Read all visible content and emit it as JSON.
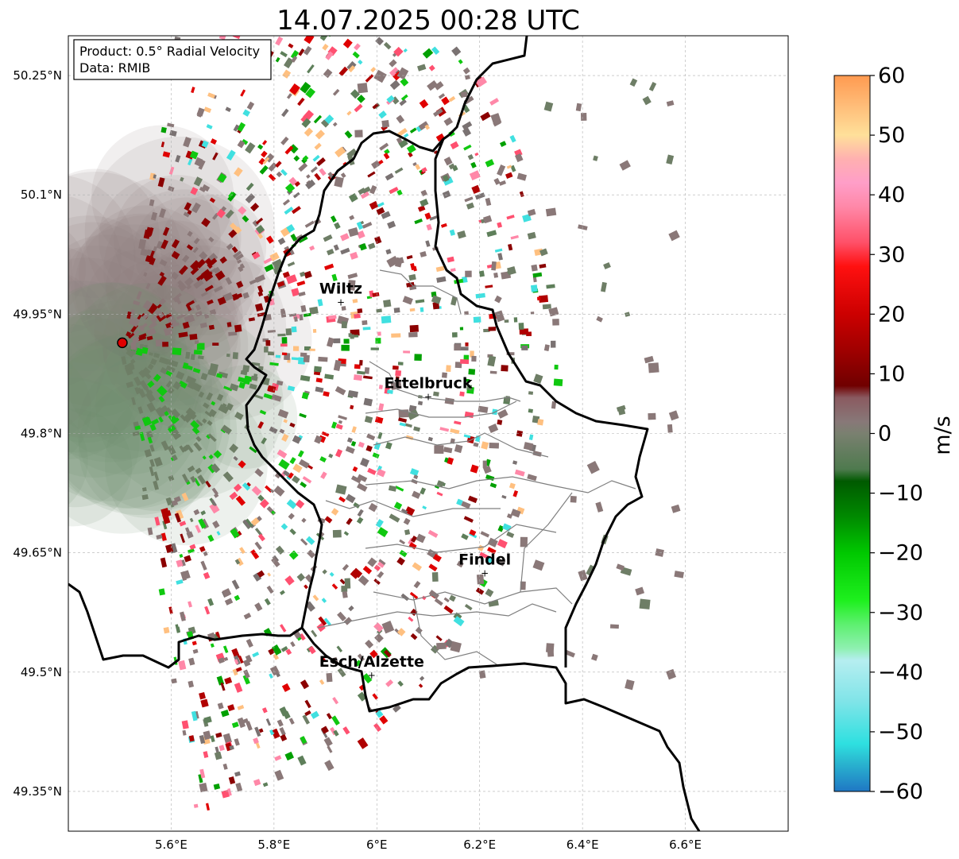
{
  "title": "14.07.2025 00:28 UTC",
  "info_box": {
    "product_line": "Product: 0.5° Radial Velocity",
    "data_line": "Data: RMIB"
  },
  "map": {
    "lon_range": [
      5.4,
      6.8
    ],
    "lat_range": [
      49.3,
      50.3
    ],
    "x_ticks": [
      {
        "value": 5.6,
        "label": "5.6°E"
      },
      {
        "value": 5.8,
        "label": "5.8°E"
      },
      {
        "value": 6.0,
        "label": "6°E"
      },
      {
        "value": 6.2,
        "label": "6.2°E"
      },
      {
        "value": 6.4,
        "label": "6.4°E"
      },
      {
        "value": 6.6,
        "label": "6.6°E"
      }
    ],
    "y_ticks": [
      {
        "value": 50.25,
        "label": "50.25°N"
      },
      {
        "value": 50.1,
        "label": "50.1°N"
      },
      {
        "value": 49.95,
        "label": "49.95°N"
      },
      {
        "value": 49.8,
        "label": "49.8°N"
      },
      {
        "value": 49.65,
        "label": "49.65°N"
      },
      {
        "value": 49.5,
        "label": "49.5°N"
      },
      {
        "value": 49.35,
        "label": "49.35°N"
      }
    ],
    "radar_site": {
      "lon": 5.505,
      "lat": 49.914
    },
    "cities": [
      {
        "name": "Wiltz",
        "lon": 5.93,
        "lat": 49.966
      },
      {
        "name": "Ettelbruck",
        "lon": 6.1,
        "lat": 49.847
      },
      {
        "name": "Findel",
        "lon": 6.21,
        "lat": 49.625
      },
      {
        "name": "Esch/Alzette",
        "lon": 5.99,
        "lat": 49.497
      }
    ]
  },
  "colorbar": {
    "label": "m/s",
    "range": [
      -60,
      60
    ],
    "ticks": [
      {
        "value": 60,
        "label": "60"
      },
      {
        "value": 50,
        "label": "50"
      },
      {
        "value": 40,
        "label": "40"
      },
      {
        "value": 30,
        "label": "30"
      },
      {
        "value": 20,
        "label": "20"
      },
      {
        "value": 10,
        "label": "10"
      },
      {
        "value": 0,
        "label": "0"
      },
      {
        "value": -10,
        "label": "−10"
      },
      {
        "value": -20,
        "label": "−20"
      },
      {
        "value": -30,
        "label": "−30"
      },
      {
        "value": -40,
        "label": "−40"
      },
      {
        "value": -50,
        "label": "−50"
      },
      {
        "value": -60,
        "label": "−60"
      }
    ],
    "color_stops": [
      {
        "value": -60,
        "color": "#1f77c4"
      },
      {
        "value": -55,
        "color": "#2ab8d0"
      },
      {
        "value": -52,
        "color": "#2ee0e0"
      },
      {
        "value": -45,
        "color": "#7fe4e8"
      },
      {
        "value": -38,
        "color": "#b6eef0"
      },
      {
        "value": -36,
        "color": "#8ef0b0"
      },
      {
        "value": -32,
        "color": "#5ef070"
      },
      {
        "value": -28,
        "color": "#1ef01e"
      },
      {
        "value": -20,
        "color": "#00c800"
      },
      {
        "value": -14,
        "color": "#008a00"
      },
      {
        "value": -8,
        "color": "#005a00"
      },
      {
        "value": -6,
        "color": "#4e7a4e"
      },
      {
        "value": 0,
        "color": "#7a8070"
      },
      {
        "value": 2,
        "color": "#887878"
      },
      {
        "value": 6,
        "color": "#8a5a60"
      },
      {
        "value": 8,
        "color": "#700000"
      },
      {
        "value": 14,
        "color": "#a00000"
      },
      {
        "value": 20,
        "color": "#cc0000"
      },
      {
        "value": 28,
        "color": "#ff1010"
      },
      {
        "value": 32,
        "color": "#ff5068"
      },
      {
        "value": 38,
        "color": "#ff88a8"
      },
      {
        "value": 42,
        "color": "#ff9ec8"
      },
      {
        "value": 46,
        "color": "#ffb0b0"
      },
      {
        "value": 50,
        "color": "#ffe09a"
      },
      {
        "value": 55,
        "color": "#ffbc78"
      },
      {
        "value": 60,
        "color": "#ff9a50"
      }
    ]
  },
  "colors": {
    "border": "#000000",
    "canton_lines": "#7f7f7f",
    "grid": "#b0b0b0",
    "radar_marker": "#e00000"
  }
}
